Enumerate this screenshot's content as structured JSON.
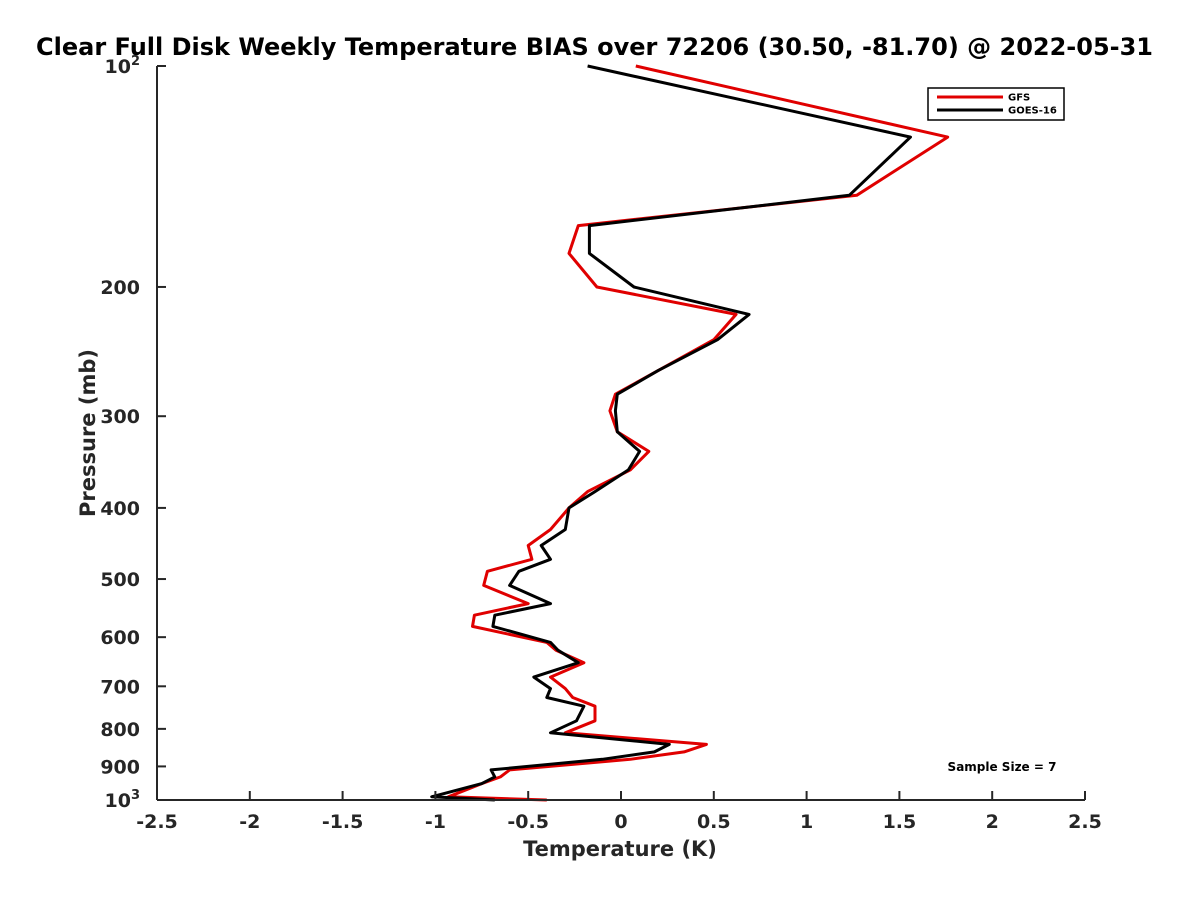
{
  "chart_data": {
    "type": "line",
    "title": "Clear Full Disk Weekly Temperature BIAS over 72206 (30.50, -81.70) @ 2022-05-31",
    "xlabel": "Temperature (K)",
    "ylabel": "Pressure (mb)",
    "xlim": [
      -2.5,
      2.5
    ],
    "ylim": [
      100,
      1000
    ],
    "y_scale": "log",
    "y_reversed": true,
    "x_ticks": [
      -2.5,
      -2,
      -1.5,
      -1,
      -0.5,
      0,
      0.5,
      1,
      1.5,
      2,
      2.5
    ],
    "x_tick_labels": [
      "-2.5",
      "-2",
      "-1.5",
      "-1",
      "-0.5",
      "0",
      "0.5",
      "1",
      "1.5",
      "2",
      "2.5"
    ],
    "y_ticks": [
      100,
      200,
      300,
      400,
      500,
      600,
      700,
      800,
      900,
      1000
    ],
    "y_tick_labels": [
      {
        "base": "10",
        "exp": "2"
      },
      {
        "base": "200"
      },
      {
        "base": "300"
      },
      {
        "base": "400"
      },
      {
        "base": "500"
      },
      {
        "base": "600"
      },
      {
        "base": "700"
      },
      {
        "base": "800"
      },
      {
        "base": "900"
      },
      {
        "base": "10",
        "exp": "3"
      }
    ],
    "grid": false,
    "legend": "top-right",
    "annotation": "Sample Size = 7",
    "series": [
      {
        "name": "GFS",
        "color": "#e00000",
        "points": [
          [
            0.08,
            100
          ],
          [
            1.76,
            125
          ],
          [
            1.27,
            150
          ],
          [
            -0.23,
            165
          ],
          [
            -0.28,
            180
          ],
          [
            -0.13,
            200
          ],
          [
            0.62,
            218
          ],
          [
            0.5,
            236
          ],
          [
            0.2,
            260
          ],
          [
            -0.03,
            280
          ],
          [
            -0.06,
            295
          ],
          [
            -0.02,
            315
          ],
          [
            0.15,
            335
          ],
          [
            0.05,
            355
          ],
          [
            -0.18,
            380
          ],
          [
            -0.28,
            400
          ],
          [
            -0.38,
            428
          ],
          [
            -0.5,
            450
          ],
          [
            -0.48,
            470
          ],
          [
            -0.72,
            488
          ],
          [
            -0.74,
            510
          ],
          [
            -0.5,
            540
          ],
          [
            -0.79,
            560
          ],
          [
            -0.8,
            580
          ],
          [
            -0.4,
            610
          ],
          [
            -0.35,
            625
          ],
          [
            -0.2,
            650
          ],
          [
            -0.38,
            680
          ],
          [
            -0.3,
            705
          ],
          [
            -0.26,
            725
          ],
          [
            -0.14,
            745
          ],
          [
            -0.14,
            780
          ],
          [
            -0.3,
            810
          ],
          [
            0.46,
            840
          ],
          [
            0.34,
            860
          ],
          [
            0.05,
            880
          ],
          [
            -0.6,
            910
          ],
          [
            -0.65,
            930
          ],
          [
            -0.75,
            950
          ],
          [
            -0.93,
            990
          ],
          [
            -0.4,
            1000
          ]
        ]
      },
      {
        "name": "GOES-16",
        "color": "#000000",
        "points": [
          [
            -0.18,
            100
          ],
          [
            1.56,
            125
          ],
          [
            1.23,
            150
          ],
          [
            -0.17,
            165
          ],
          [
            -0.17,
            180
          ],
          [
            0.07,
            200
          ],
          [
            0.69,
            218
          ],
          [
            0.52,
            236
          ],
          [
            0.2,
            260
          ],
          [
            -0.02,
            280
          ],
          [
            -0.03,
            295
          ],
          [
            -0.02,
            315
          ],
          [
            0.1,
            335
          ],
          [
            0.04,
            355
          ],
          [
            -0.14,
            380
          ],
          [
            -0.28,
            400
          ],
          [
            -0.3,
            428
          ],
          [
            -0.43,
            450
          ],
          [
            -0.38,
            470
          ],
          [
            -0.55,
            488
          ],
          [
            -0.6,
            510
          ],
          [
            -0.38,
            540
          ],
          [
            -0.68,
            560
          ],
          [
            -0.69,
            580
          ],
          [
            -0.38,
            610
          ],
          [
            -0.34,
            625
          ],
          [
            -0.23,
            650
          ],
          [
            -0.47,
            680
          ],
          [
            -0.38,
            705
          ],
          [
            -0.4,
            725
          ],
          [
            -0.2,
            745
          ],
          [
            -0.24,
            780
          ],
          [
            -0.38,
            810
          ],
          [
            0.26,
            840
          ],
          [
            0.18,
            860
          ],
          [
            -0.1,
            880
          ],
          [
            -0.7,
            910
          ],
          [
            -0.68,
            930
          ],
          [
            -0.75,
            950
          ],
          [
            -1.02,
            990
          ],
          [
            -0.68,
            1000
          ]
        ]
      }
    ]
  }
}
